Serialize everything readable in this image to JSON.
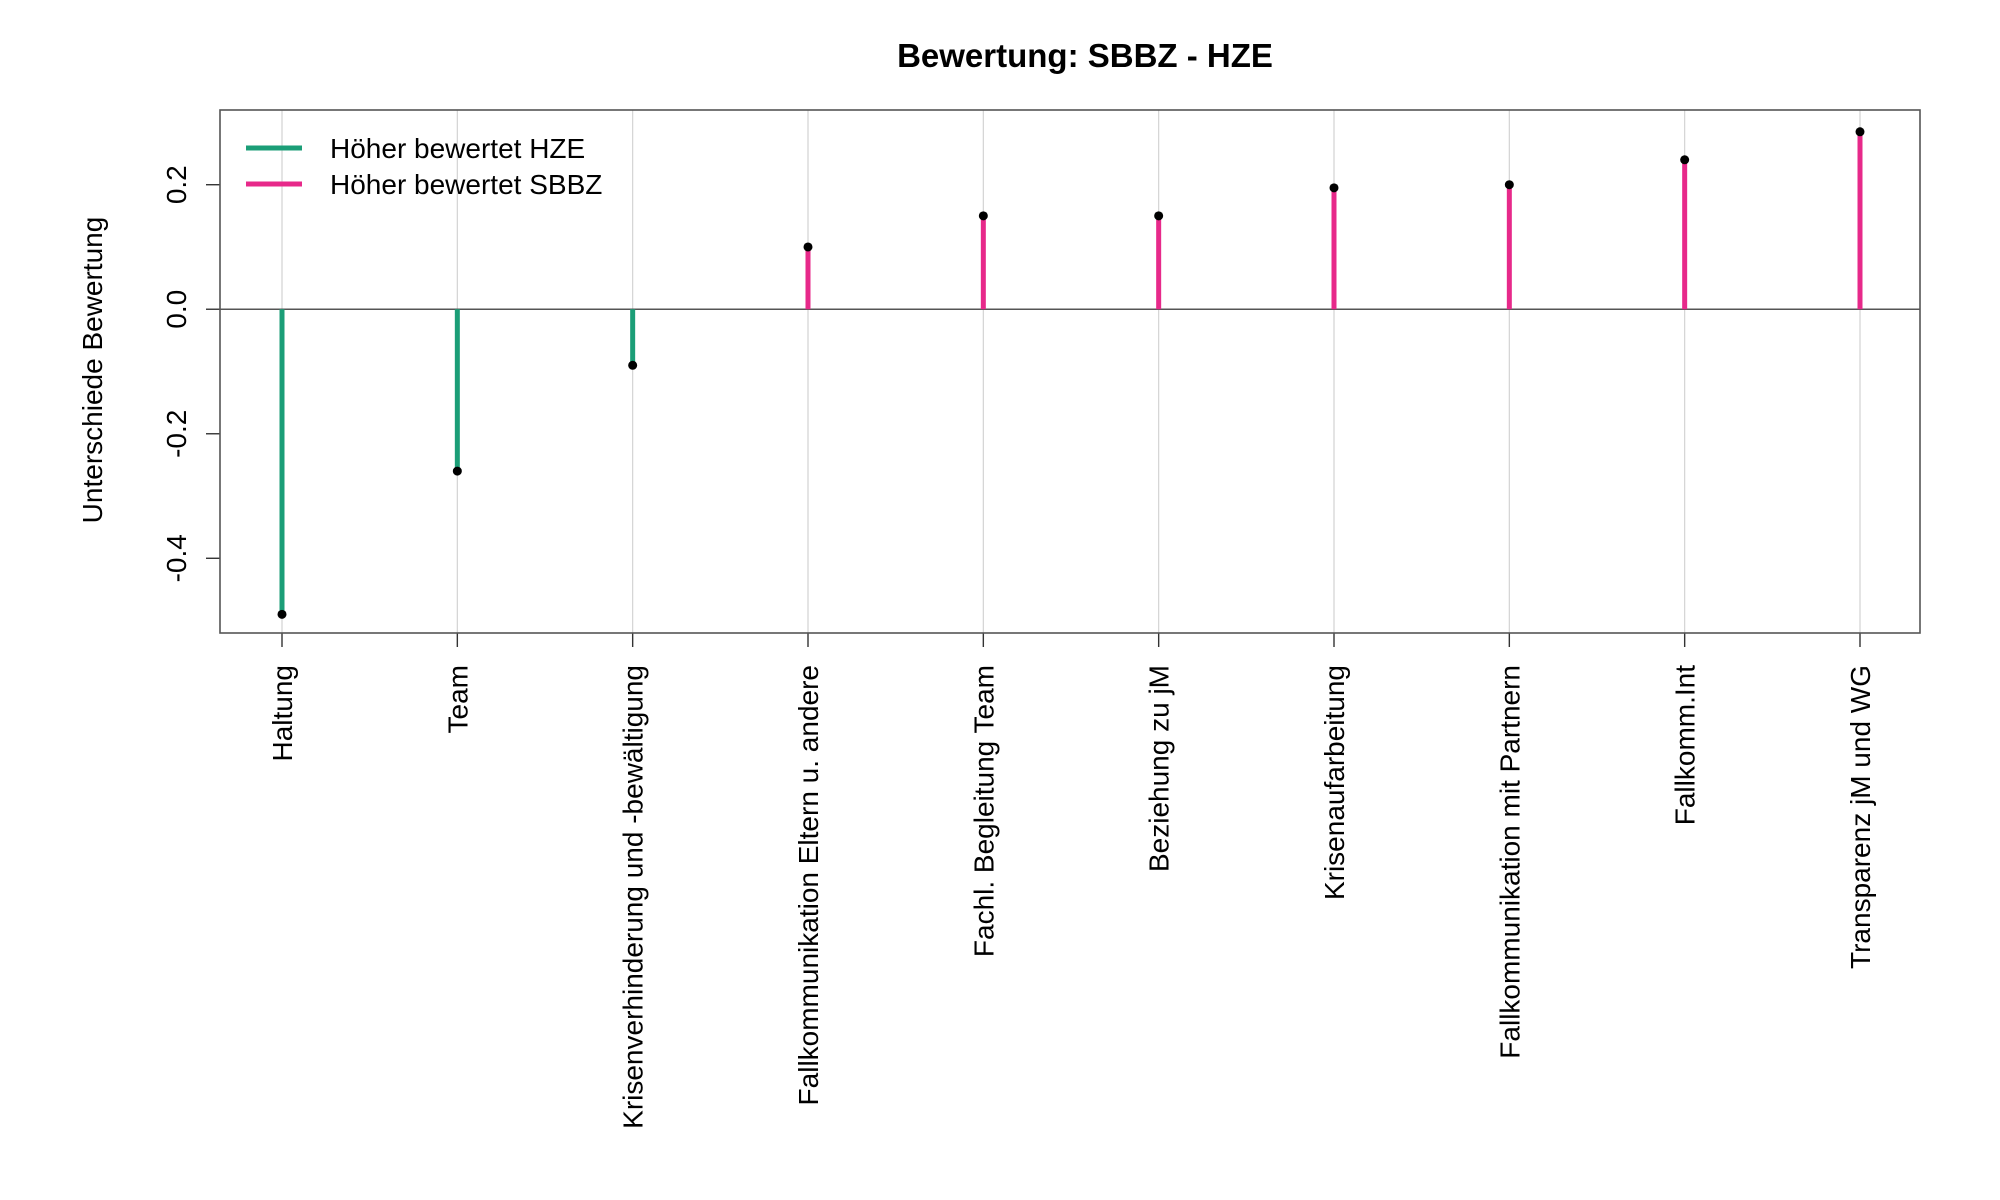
{
  "chart_data": {
    "type": "lollipop",
    "title": "Bewertung: SBBZ - HZE",
    "xlabel": "",
    "ylabel": "Unterschiede Bewertung",
    "ylim": [
      -0.52,
      0.32
    ],
    "yticks": [
      -0.4,
      -0.2,
      0.0,
      0.2
    ],
    "ytick_labels": [
      "-0.4",
      "-0.2",
      "0.0",
      "0.2"
    ],
    "categories": [
      "Haltung",
      "Team",
      "Krisenverhinderung und -bewältigung",
      "Fallkommunikation Eltern u. andere",
      "Fachl. Begleitung Team",
      "Beziehung zu jM",
      "Krisenaufarbeitung",
      "Fallkommunikation mit Partnern",
      "Fallkomm.Int",
      "Transparenz jM und WG"
    ],
    "values": [
      -0.49,
      -0.26,
      -0.09,
      0.1,
      0.15,
      0.15,
      0.195,
      0.2,
      0.24,
      0.285
    ],
    "legend": {
      "position": "top-left",
      "items": [
        {
          "label": "Höher bewertet HZE",
          "color": "#1b9e77"
        },
        {
          "label": "Höher bewertet SBBZ",
          "color": "#e7298a"
        }
      ]
    },
    "colors": {
      "negative": "#1b9e77",
      "positive": "#e7298a",
      "point": "#000000",
      "grid": "#d3d3d3",
      "zero_line": "#555555"
    },
    "grid": "vertical"
  }
}
